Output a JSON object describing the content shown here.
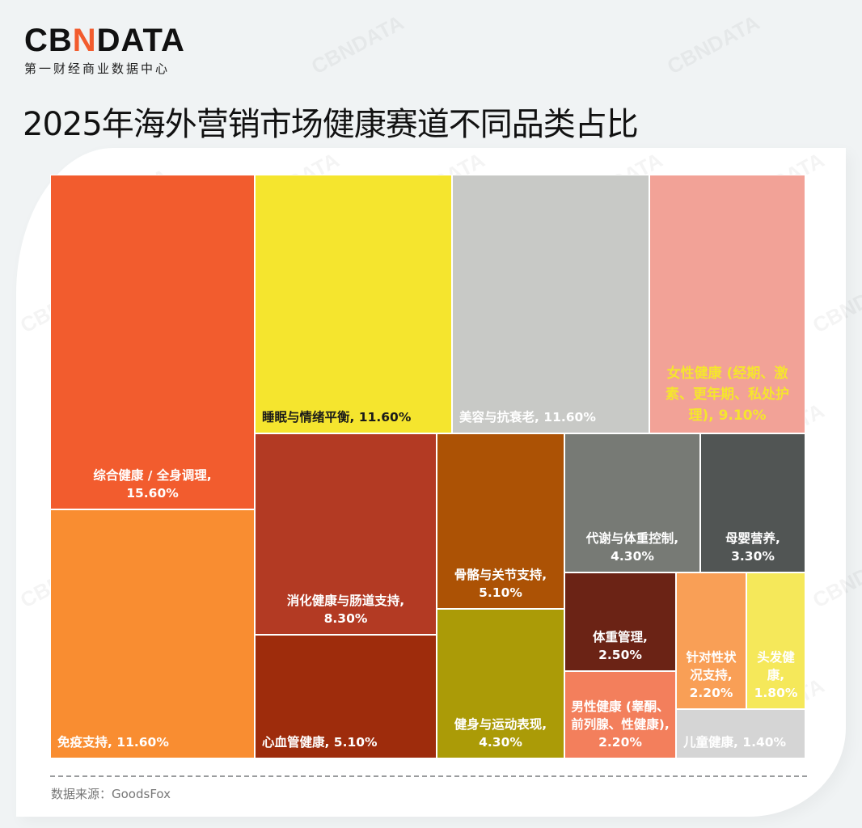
{
  "brand": {
    "logo_text_pre": "CB",
    "logo_text_mark": "N",
    "logo_text_post": "DATA",
    "logo_subtitle": "第一财经商业数据中心",
    "accent_color": "#F25C2E",
    "watermark_text": "CBNDATA"
  },
  "chart_data": {
    "type": "treemap",
    "title": "2025年海外营销市场健康赛道不同品类占比",
    "unit": "%",
    "items": [
      {
        "name": "综合健康 / 全身调理",
        "value": 15.6,
        "label": "综合健康 / 全身调理, 15.60%",
        "color": "#F25C2E",
        "text_color": "#FFFFFF"
      },
      {
        "name": "免疫支持",
        "value": 11.6,
        "label": "免疫支持, 11.60%",
        "color": "#F98D31",
        "text_color": "#FFFFFF"
      },
      {
        "name": "睡眠与情绪平衡",
        "value": 11.6,
        "label": "睡眠与情绪平衡, 11.60%",
        "color": "#F5E52E",
        "text_color": "#1A1A1A"
      },
      {
        "name": "美容与抗衰老",
        "value": 11.6,
        "label": "美容与抗衰老, 11.60%",
        "color": "#C8C9C6",
        "text_color": "#FFFFFF"
      },
      {
        "name": "女性健康 (经期、激素、更年期、私处护理)",
        "value": 9.1,
        "label": "女性健康 (经期、激素、更年期、私处护理), 9.10%",
        "color": "#F2A297",
        "text_color": "#F5E52E"
      },
      {
        "name": "消化健康与肠道支持",
        "value": 8.3,
        "label": "消化健康与肠道支持, 8.30%",
        "color": "#B33A23",
        "text_color": "#FFFFFF"
      },
      {
        "name": "心血管健康",
        "value": 5.1,
        "label": "心血管健康, 5.10%",
        "color": "#9E2C0C",
        "text_color": "#FFFFFF"
      },
      {
        "name": "骨骼与关节支持",
        "value": 5.1,
        "label": "骨骼与关节支持, 5.10%",
        "color": "#AC5205",
        "text_color": "#FFFFFF"
      },
      {
        "name": "健身与运动表现",
        "value": 4.3,
        "label": "健身与运动表现, 4.30%",
        "color": "#AB9B07",
        "text_color": "#FFFFFF"
      },
      {
        "name": "代谢与体重控制",
        "value": 4.3,
        "label": "代谢与体重控制, 4.30%",
        "color": "#777A75",
        "text_color": "#FFFFFF"
      },
      {
        "name": "母婴营养",
        "value": 3.3,
        "label": "母婴营养, 3.30%",
        "color": "#515554",
        "text_color": "#FFFFFF"
      },
      {
        "name": "体重管理",
        "value": 2.5,
        "label": "体重管理, 2.50%",
        "color": "#6B2315",
        "text_color": "#FFFFFF"
      },
      {
        "name": "男性健康 (睾酮、前列腺、性健康)",
        "value": 2.2,
        "label": "男性健康 (睾酮、前列腺、性健康), 2.20%",
        "color": "#F37F5C",
        "text_color": "#FFFFFF"
      },
      {
        "name": "针对性状况支持",
        "value": 2.2,
        "label": "针对性状况支持, 2.20%",
        "color": "#F99F56",
        "text_color": "#FFFFFF"
      },
      {
        "name": "头发健康",
        "value": 1.8,
        "label": "头发健康, 1.80%",
        "color": "#F5E85A",
        "text_color": "#FFFFFF"
      },
      {
        "name": "儿童健康",
        "value": 1.4,
        "label": "儿童健康, 1.40%",
        "color": "#D5D5D5",
        "text_color": "#FFFFFF"
      }
    ]
  },
  "footer": {
    "source": "数据来源：GoodsFox"
  }
}
